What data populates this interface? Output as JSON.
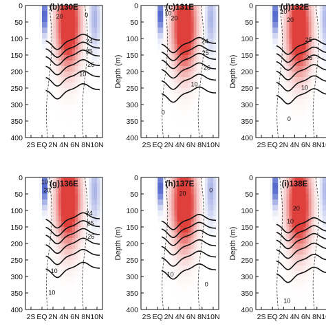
{
  "chart_data": {
    "type": "contour",
    "x_ticks": [
      "2S",
      "EQ",
      "2N",
      "4N",
      "6N",
      "8N",
      "10N"
    ],
    "x_range": [
      -3,
      11
    ],
    "y_ticks": [
      "0",
      "50",
      "100",
      "150",
      "200",
      "250",
      "300",
      "350",
      "400"
    ],
    "y_range": [
      0,
      400
    ],
    "y_inverted": true,
    "ylabel": "Depth (m)",
    "colors": {
      "positive": "#e0403c",
      "negative": "#3e55c8"
    },
    "panels": [
      {
        "title": "(b)130E",
        "show_ylabel": false,
        "contour_labels": [
          {
            "text": "20",
            "x": 3.2,
            "y": 40
          },
          {
            "text": "0",
            "x": 8.1,
            "y": 35
          },
          {
            "text": "24",
            "x": 8.6,
            "y": 115
          },
          {
            "text": "25",
            "x": 8.6,
            "y": 145
          },
          {
            "text": "26",
            "x": 8.9,
            "y": 185
          },
          {
            "text": "10",
            "x": 7.4,
            "y": 215
          }
        ]
      },
      {
        "title": "(c)131E",
        "show_ylabel": true,
        "contour_labels": [
          {
            "text": "10",
            "x": 1.9,
            "y": 30
          },
          {
            "text": "20",
            "x": 3.0,
            "y": 45
          },
          {
            "text": "24",
            "x": 8.5,
            "y": 115
          },
          {
            "text": "25",
            "x": 8.6,
            "y": 150
          },
          {
            "text": "26",
            "x": 8.9,
            "y": 195
          },
          {
            "text": "10",
            "x": 6.6,
            "y": 245
          },
          {
            "text": "0",
            "x": 1.0,
            "y": 330
          }
        ]
      },
      {
        "title": "(d)132E",
        "show_ylabel": true,
        "contour_labels": [
          {
            "text": "10",
            "x": 2.0,
            "y": 25
          },
          {
            "text": "20",
            "x": 3.2,
            "y": 50
          },
          {
            "text": "25",
            "x": 6.5,
            "y": 110
          },
          {
            "text": "26",
            "x": 6.6,
            "y": 165
          },
          {
            "text": "10",
            "x": 5.8,
            "y": 255
          },
          {
            "text": "0",
            "x": 3.0,
            "y": 350
          }
        ]
      },
      {
        "title": "(g)136E",
        "show_ylabel": false,
        "contour_labels": [
          {
            "text": "10",
            "x": 0.5,
            "y": 20
          },
          {
            "text": "20",
            "x": 0.9,
            "y": 45
          },
          {
            "text": "24",
            "x": 8.6,
            "y": 115
          },
          {
            "text": "25",
            "x": 8.8,
            "y": 145
          },
          {
            "text": "26",
            "x": 8.9,
            "y": 185
          },
          {
            "text": "10",
            "x": 2.2,
            "y": 290
          },
          {
            "text": "10",
            "x": 1.8,
            "y": 355
          }
        ]
      },
      {
        "title": "(h)137E",
        "show_ylabel": true,
        "contour_labels": [
          {
            "text": "20",
            "x": 4.5,
            "y": 55
          },
          {
            "text": "0",
            "x": 9.6,
            "y": 45
          },
          {
            "text": "10",
            "x": 2.3,
            "y": 300
          },
          {
            "text": "0",
            "x": 8.8,
            "y": 330
          }
        ]
      },
      {
        "title": "(i)138E",
        "show_ylabel": true,
        "contour_labels": [
          {
            "text": "20",
            "x": 4.3,
            "y": 100
          },
          {
            "text": "10",
            "x": 3.2,
            "y": 140
          },
          {
            "text": "10",
            "x": 2.6,
            "y": 380
          }
        ]
      }
    ]
  }
}
